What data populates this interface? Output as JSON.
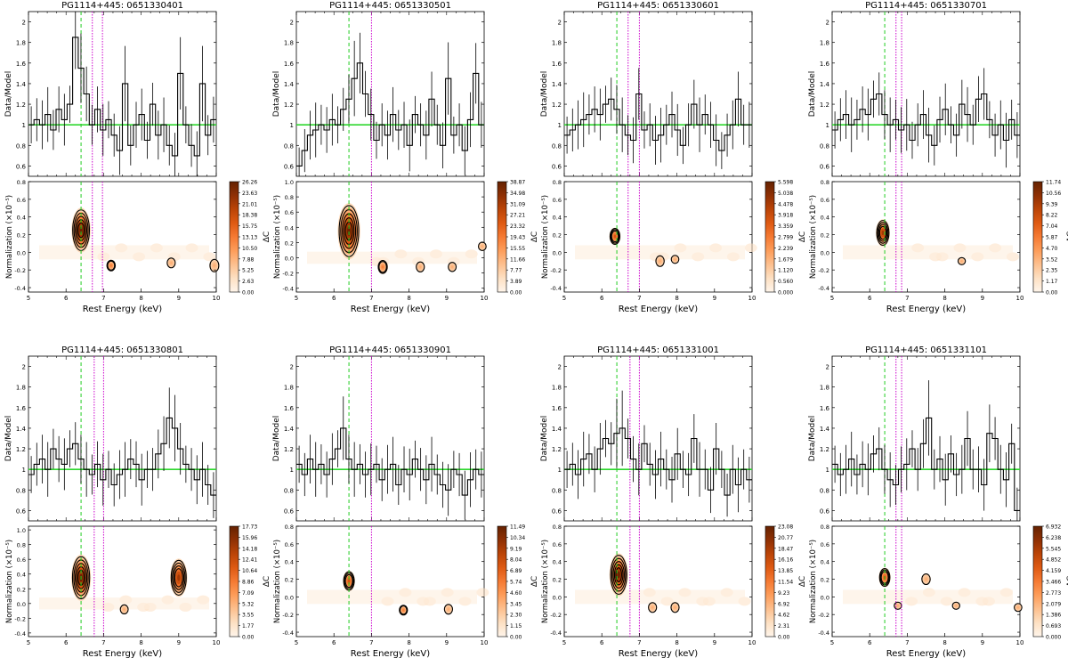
{
  "figure": {
    "ratio_ylabel": "Data/Model",
    "map_ylabel": "Normalization (×10⁻⁵)",
    "xlabel": "Rest Energy (keV)",
    "colorbar_label": "ΔC"
  },
  "chart_data": [
    {
      "type": "step_with_errorbars+contour",
      "title": "PG1114+445: 0651330401",
      "ratio": {
        "xlim": [
          5,
          10
        ],
        "ylim": [
          0.5,
          2.1
        ],
        "yticks": [
          "0.6",
          "0.8",
          "1",
          "1.2",
          "1.4",
          "1.6",
          "1.8",
          "2"
        ],
        "values": [
          1.0,
          1.05,
          1.0,
          1.1,
          0.95,
          1.15,
          1.05,
          1.2,
          1.85,
          1.55,
          1.3,
          1.0,
          1.15,
          0.95,
          1.05,
          0.9,
          0.75,
          1.4,
          0.8,
          1.0,
          1.1,
          0.85,
          1.2,
          0.9,
          1.0,
          0.8,
          0.7,
          1.5,
          1.0,
          0.8,
          0.7,
          1.4,
          0.9,
          1.05
        ]
      },
      "lines_keV": {
        "green": 6.4,
        "magenta": [
          6.7,
          6.97
        ]
      },
      "map": {
        "xlim": [
          5,
          10
        ],
        "ylim": [
          -0.45,
          0.8
        ],
        "yticks": [
          "-0.4",
          "-0.2",
          "0.0",
          "0.2",
          "0.4",
          "0.6",
          "0.8"
        ],
        "blobs": [
          {
            "x": 6.4,
            "y": 0.25,
            "h": 0.4,
            "rings": 5
          },
          {
            "x": 7.2,
            "y": -0.15,
            "h": 0.06,
            "rings": 2
          },
          {
            "x": 8.8,
            "y": -0.12,
            "h": 0.05,
            "rings": 1
          },
          {
            "x": 9.95,
            "y": -0.15,
            "h": 0.08,
            "rings": 1
          }
        ]
      },
      "colorbar": [
        "0.00",
        "2.63",
        "5.25",
        "7.88",
        "10.50",
        "13.13",
        "15.75",
        "18.38",
        "21.01",
        "23.63",
        "26.26"
      ]
    },
    {
      "type": "step_with_errorbars+contour",
      "title": "PG1114+445: 0651330501",
      "ratio": {
        "xlim": [
          5,
          10
        ],
        "ylim": [
          0.5,
          2.1
        ],
        "yticks": [
          "0.6",
          "0.8",
          "1",
          "1.2",
          "1.4",
          "1.6",
          "1.8",
          "2"
        ],
        "values": [
          0.6,
          0.75,
          0.9,
          0.95,
          1.0,
          0.95,
          1.05,
          1.0,
          1.15,
          1.25,
          1.45,
          1.6,
          1.3,
          1.1,
          0.85,
          1.0,
          0.9,
          1.1,
          0.95,
          1.0,
          0.8,
          1.1,
          1.0,
          0.9,
          1.25,
          1.0,
          0.8,
          1.45,
          0.9,
          1.0,
          0.75,
          1.05,
          1.5,
          1.0
        ]
      },
      "lines_keV": {
        "green": 6.4,
        "magenta": [
          7.0
        ]
      },
      "map": {
        "xlim": [
          5,
          10
        ],
        "ylim": [
          -0.45,
          1.0
        ],
        "yticks": [
          "-0.4",
          "-0.2",
          "0.0",
          "0.2",
          "0.4",
          "0.6",
          "0.8",
          "1.0"
        ],
        "blobs": [
          {
            "x": 6.4,
            "y": 0.35,
            "h": 0.6,
            "rings": 5
          },
          {
            "x": 7.3,
            "y": -0.12,
            "h": 0.1,
            "rings": 2
          },
          {
            "x": 8.3,
            "y": -0.12,
            "h": 0.06,
            "rings": 1
          },
          {
            "x": 9.15,
            "y": -0.12,
            "h": 0.05,
            "rings": 1
          },
          {
            "x": 9.95,
            "y": 0.15,
            "h": 0.04,
            "rings": 1
          }
        ]
      },
      "colorbar": [
        "0.00",
        "3.89",
        "7.77",
        "11.66",
        "15.55",
        "19.43",
        "23.32",
        "27.21",
        "31.09",
        "34.98",
        "38.87"
      ]
    },
    {
      "type": "step_with_errorbars+contour",
      "title": "PG1114+445: 0651330601",
      "ratio": {
        "xlim": [
          5,
          10
        ],
        "ylim": [
          0.5,
          2.1
        ],
        "yticks": [
          "0.6",
          "0.8",
          "1",
          "1.2",
          "1.4",
          "1.6",
          "1.8",
          "2"
        ],
        "values": [
          0.9,
          0.95,
          1.0,
          1.05,
          1.1,
          1.15,
          1.1,
          1.2,
          1.25,
          1.15,
          1.0,
          0.9,
          0.85,
          1.3,
          0.95,
          1.0,
          0.85,
          0.9,
          1.0,
          1.1,
          0.95,
          0.8,
          1.0,
          1.2,
          1.0,
          1.1,
          1.0,
          0.85,
          0.75,
          0.9,
          1.0,
          1.25,
          1.0,
          1.0
        ]
      },
      "lines_keV": {
        "green": 6.4,
        "magenta": [
          6.7,
          7.0
        ]
      },
      "map": {
        "xlim": [
          5,
          10
        ],
        "ylim": [
          -0.45,
          0.8
        ],
        "yticks": [
          "-0.4",
          "-0.2",
          "0.0",
          "0.2",
          "0.4",
          "0.6",
          "0.8"
        ],
        "blobs": [
          {
            "x": 6.35,
            "y": 0.18,
            "h": 0.12,
            "rings": 3
          },
          {
            "x": 7.55,
            "y": -0.1,
            "h": 0.06,
            "rings": 1
          },
          {
            "x": 7.95,
            "y": -0.08,
            "h": 0.03,
            "rings": 1
          }
        ]
      },
      "colorbar": [
        "0.000",
        "0.560",
        "1.120",
        "1.679",
        "2.239",
        "2.799",
        "3.359",
        "3.918",
        "4.478",
        "5.038",
        "5.598"
      ]
    },
    {
      "type": "step_with_errorbars+contour",
      "title": "PG1114+445: 0651330701",
      "ratio": {
        "xlim": [
          5,
          10
        ],
        "ylim": [
          0.5,
          2.1
        ],
        "yticks": [
          "0.6",
          "0.8",
          "1",
          "1.2",
          "1.4",
          "1.6",
          "1.8",
          "2"
        ],
        "values": [
          0.95,
          1.05,
          1.1,
          1.0,
          1.05,
          1.15,
          1.1,
          1.25,
          1.3,
          1.1,
          1.0,
          1.05,
          0.95,
          1.0,
          0.85,
          1.0,
          1.1,
          0.9,
          0.8,
          1.05,
          1.15,
          1.0,
          0.9,
          1.2,
          1.1,
          1.0,
          1.25,
          1.3,
          1.05,
          0.9,
          1.0,
          0.85,
          1.05,
          0.9
        ]
      },
      "lines_keV": {
        "green": 6.4,
        "magenta": [
          6.7,
          6.85
        ]
      },
      "map": {
        "xlim": [
          5,
          10
        ],
        "ylim": [
          -0.45,
          0.8
        ],
        "yticks": [
          "-0.4",
          "-0.2",
          "0.0",
          "0.2",
          "0.4",
          "0.6",
          "0.8"
        ],
        "blobs": [
          {
            "x": 6.35,
            "y": 0.22,
            "h": 0.22,
            "rings": 4
          },
          {
            "x": 8.45,
            "y": -0.1,
            "h": 0.02,
            "rings": 1
          }
        ]
      },
      "colorbar": [
        "0.00",
        "1.17",
        "2.35",
        "3.52",
        "4.70",
        "5.87",
        "7.04",
        "8.22",
        "9.39",
        "10.56",
        "11.74"
      ]
    },
    {
      "type": "step_with_errorbars+contour",
      "title": "PG1114+445: 0651330801",
      "ratio": {
        "xlim": [
          5,
          10
        ],
        "ylim": [
          0.5,
          2.1
        ],
        "yticks": [
          "0.6",
          "0.8",
          "1",
          "1.2",
          "1.4",
          "1.6",
          "1.8",
          "2"
        ],
        "values": [
          0.95,
          1.05,
          1.1,
          1.0,
          1.2,
          1.1,
          1.05,
          1.2,
          1.25,
          1.1,
          1.0,
          0.95,
          1.05,
          0.9,
          1.0,
          0.85,
          0.95,
          1.0,
          1.1,
          1.05,
          0.9,
          1.0,
          1.0,
          1.15,
          1.25,
          1.5,
          1.4,
          1.2,
          1.05,
          1.0,
          0.9,
          1.0,
          0.85,
          0.75
        ]
      },
      "lines_keV": {
        "green": 6.4,
        "magenta": [
          6.75,
          7.0
        ]
      },
      "map": {
        "xlim": [
          5,
          10
        ],
        "ylim": [
          -0.45,
          1.05
        ],
        "yticks": [
          "-0.4",
          "-0.2",
          "0.0",
          "0.2",
          "0.4",
          "0.6",
          "0.8",
          "1.0"
        ],
        "blobs": [
          {
            "x": 6.4,
            "y": 0.35,
            "h": 0.5,
            "rings": 5
          },
          {
            "x": 9.0,
            "y": 0.35,
            "h": 0.4,
            "rings": 4
          },
          {
            "x": 7.55,
            "y": -0.08,
            "h": 0.05,
            "rings": 1
          }
        ]
      },
      "colorbar": [
        "0.00",
        "1.77",
        "3.55",
        "5.32",
        "7.09",
        "8.86",
        "10.64",
        "12.41",
        "14.18",
        "15.96",
        "17.73"
      ]
    },
    {
      "type": "step_with_errorbars+contour",
      "title": "PG1114+445: 0651330901",
      "ratio": {
        "xlim": [
          5,
          10
        ],
        "ylim": [
          0.5,
          2.1
        ],
        "yticks": [
          "0.6",
          "0.8",
          "1",
          "1.2",
          "1.4",
          "1.6",
          "1.8",
          "2"
        ],
        "values": [
          1.05,
          0.95,
          1.1,
          1.0,
          1.05,
          0.95,
          1.1,
          1.2,
          1.4,
          1.1,
          1.0,
          1.05,
          0.95,
          1.0,
          1.05,
          0.9,
          1.0,
          1.05,
          0.85,
          1.0,
          0.95,
          1.1,
          1.0,
          0.9,
          1.05,
          0.95,
          0.85,
          0.8,
          1.0,
          0.95,
          0.75,
          0.9,
          1.0,
          0.95
        ]
      },
      "lines_keV": {
        "green": 6.4,
        "magenta": [
          7.0
        ]
      },
      "map": {
        "xlim": [
          5,
          10
        ],
        "ylim": [
          -0.45,
          0.8
        ],
        "yticks": [
          "-0.4",
          "-0.2",
          "0.0",
          "0.2",
          "0.4",
          "0.6",
          "0.8"
        ],
        "blobs": [
          {
            "x": 6.4,
            "y": 0.18,
            "h": 0.15,
            "rings": 3
          },
          {
            "x": 7.85,
            "y": -0.15,
            "h": 0.05,
            "rings": 2
          },
          {
            "x": 9.05,
            "y": -0.14,
            "h": 0.05,
            "rings": 1
          }
        ]
      },
      "colorbar": [
        "0.00",
        "1.15",
        "2.30",
        "3.45",
        "4.60",
        "5.74",
        "6.89",
        "8.04",
        "9.19",
        "10.34",
        "11.49"
      ]
    },
    {
      "type": "step_with_errorbars+contour",
      "title": "PG1114+445: 0651331001",
      "ratio": {
        "xlim": [
          5,
          10
        ],
        "ylim": [
          0.5,
          2.1
        ],
        "yticks": [
          "0.6",
          "0.8",
          "1",
          "1.2",
          "1.4",
          "1.6",
          "1.8",
          "2"
        ],
        "values": [
          1.0,
          1.05,
          0.95,
          1.1,
          1.15,
          1.0,
          1.2,
          1.3,
          1.25,
          1.35,
          1.4,
          1.3,
          1.1,
          1.0,
          1.25,
          1.05,
          0.95,
          1.1,
          1.0,
          0.9,
          1.15,
          1.0,
          0.95,
          1.3,
          1.0,
          1.0,
          0.8,
          1.2,
          1.0,
          0.75,
          1.0,
          0.85,
          1.0,
          0.9
        ]
      },
      "lines_keV": {
        "green": 6.4,
        "magenta": [
          6.75,
          7.0
        ]
      },
      "map": {
        "xlim": [
          5,
          10
        ],
        "ylim": [
          -0.45,
          0.8
        ],
        "yticks": [
          "-0.4",
          "-0.2",
          "0.0",
          "0.2",
          "0.4",
          "0.6",
          "0.8"
        ],
        "blobs": [
          {
            "x": 6.45,
            "y": 0.25,
            "h": 0.38,
            "rings": 5
          },
          {
            "x": 7.35,
            "y": -0.12,
            "h": 0.05,
            "rings": 1
          },
          {
            "x": 7.95,
            "y": -0.12,
            "h": 0.05,
            "rings": 1
          }
        ]
      },
      "colorbar": [
        "0.00",
        "2.31",
        "4.62",
        "6.92",
        "9.23",
        "11.54",
        "13.85",
        "16.16",
        "18.47",
        "20.77",
        "23.08"
      ]
    },
    {
      "type": "step_with_errorbars+contour",
      "title": "PG1114+445: 0651331101",
      "ratio": {
        "xlim": [
          5,
          10
        ],
        "ylim": [
          0.5,
          2.1
        ],
        "yticks": [
          "0.6",
          "0.8",
          "1",
          "1.2",
          "1.4",
          "1.6",
          "1.8",
          "2"
        ],
        "values": [
          1.05,
          0.95,
          1.0,
          1.1,
          0.95,
          1.05,
          1.0,
          1.15,
          1.2,
          1.0,
          0.9,
          0.85,
          1.0,
          1.05,
          1.2,
          1.0,
          1.25,
          1.5,
          1.0,
          1.1,
          0.9,
          1.15,
          0.95,
          1.0,
          1.3,
          1.0,
          1.0,
          0.85,
          1.35,
          1.3,
          1.0,
          0.9,
          1.25,
          0.6
        ]
      },
      "lines_keV": {
        "green": 6.4,
        "magenta": [
          6.7,
          6.85
        ]
      },
      "map": {
        "xlim": [
          5,
          10
        ],
        "ylim": [
          -0.45,
          0.8
        ],
        "yticks": [
          "-0.4",
          "-0.2",
          "0.0",
          "0.2",
          "0.4",
          "0.6",
          "0.8"
        ],
        "blobs": [
          {
            "x": 6.4,
            "y": 0.22,
            "h": 0.14,
            "rings": 3
          },
          {
            "x": 7.5,
            "y": 0.2,
            "h": 0.06,
            "rings": 1
          },
          {
            "x": 6.75,
            "y": -0.1,
            "h": 0.02,
            "rings": 1
          },
          {
            "x": 8.3,
            "y": -0.1,
            "h": 0.02,
            "rings": 1
          },
          {
            "x": 9.95,
            "y": -0.12,
            "h": 0.03,
            "rings": 1
          }
        ]
      },
      "colorbar": [
        "0.000",
        "0.693",
        "1.386",
        "2.079",
        "2.773",
        "3.466",
        "4.159",
        "4.852",
        "5.545",
        "6.238",
        "6.932"
      ]
    }
  ]
}
